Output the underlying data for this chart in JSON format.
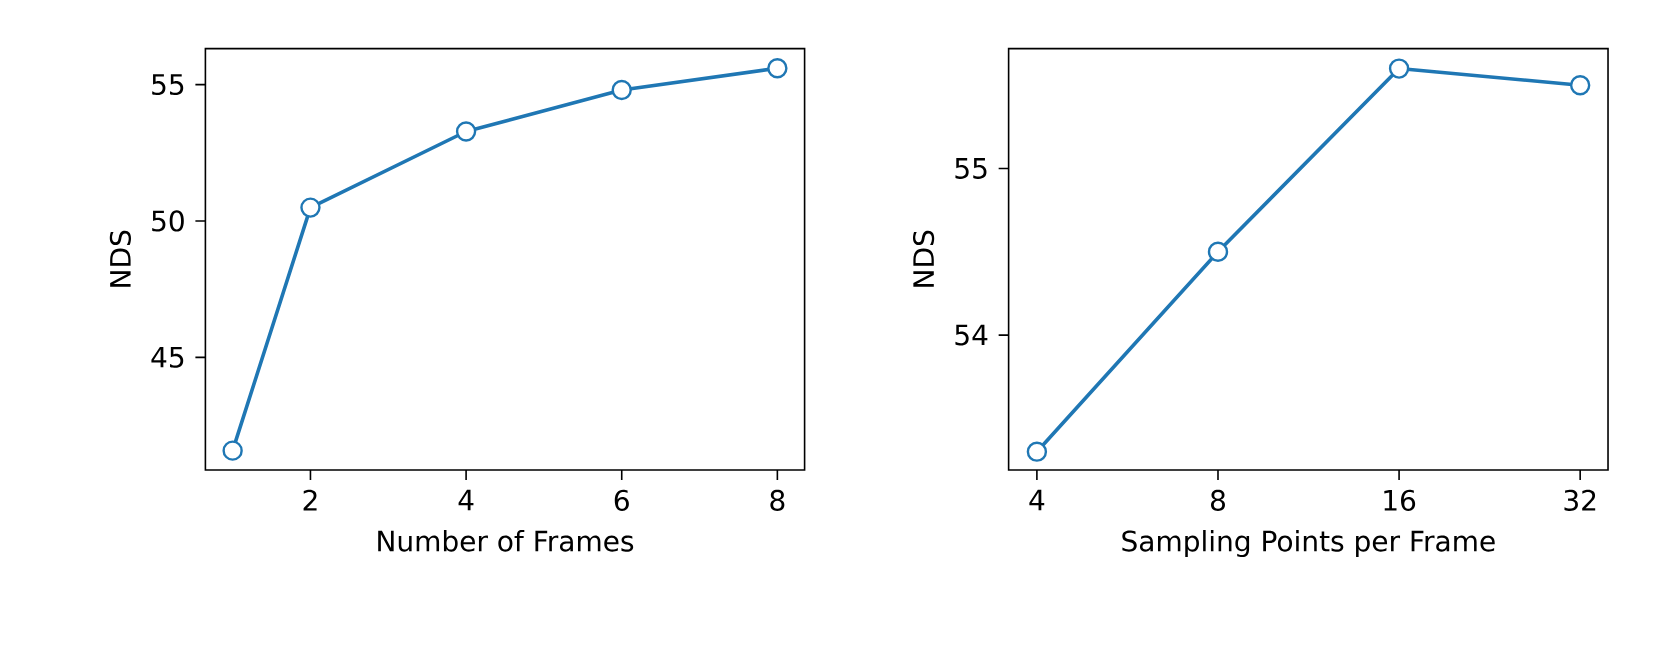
{
  "chart_data": [
    {
      "type": "line",
      "xlabel": "Number of Frames",
      "ylabel": "NDS",
      "x": [
        1,
        2,
        4,
        6,
        8
      ],
      "values": [
        41.58,
        50.49,
        53.28,
        54.8,
        55.6
      ],
      "color": "#1f77b4",
      "marker": "circle",
      "xlim": [
        0.65,
        8.35
      ],
      "ylim": [
        40.87,
        56.32
      ],
      "xticks": [
        2,
        4,
        6,
        8
      ],
      "yticks": [
        45,
        50,
        55
      ]
    },
    {
      "type": "line",
      "xlabel": "Sampling Points per Frame",
      "ylabel": "NDS",
      "x": [
        4,
        8,
        16,
        32
      ],
      "values": [
        53.3,
        54.5,
        55.6,
        55.5
      ],
      "color": "#1f77b4",
      "marker": "circle",
      "log": "x",
      "xlim": [
        3.59,
        35.6
      ],
      "ylim": [
        53.19,
        55.72
      ],
      "xticks": [
        4,
        8,
        16,
        32
      ],
      "yticks": [
        54,
        55
      ]
    }
  ]
}
